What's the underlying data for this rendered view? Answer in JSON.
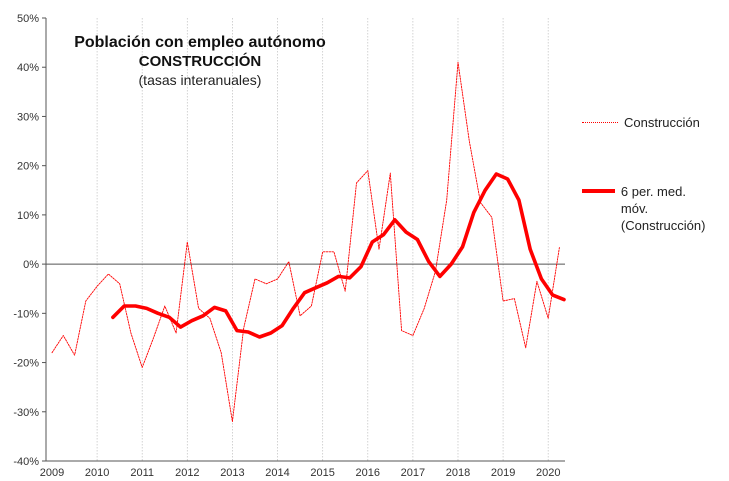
{
  "title": {
    "line1": "Población con empleo autónomo",
    "line2": "CONSTRUCCIÓN",
    "line3": "(tasas interanuales)"
  },
  "colors": {
    "series": "#ff0000",
    "grid": "#c8c8c8",
    "axis": "#555555"
  },
  "chart_data": {
    "type": "line",
    "x_label": "",
    "y_label": "",
    "xlim": [
      2009.0,
      2020.35
    ],
    "ylim": [
      -40,
      50
    ],
    "y_ticks": [
      -40,
      -30,
      -20,
      -10,
      0,
      10,
      20,
      30,
      40,
      50
    ],
    "y_tick_labels": [
      "-40%",
      "-30%",
      "-20%",
      "-10%",
      "0%",
      "10%",
      "20%",
      "30%",
      "40%",
      "50%"
    ],
    "x_ticks": [
      2009,
      2010,
      2011,
      2012,
      2013,
      2014,
      2015,
      2016,
      2017,
      2018,
      2019,
      2020
    ],
    "x_tick_labels": [
      "2009",
      "2010",
      "2011",
      "2012",
      "2013",
      "2014",
      "2015",
      "2016",
      "2017",
      "2018",
      "2019",
      "2020"
    ],
    "grid": "vertical",
    "legend_position": "right",
    "series": [
      {
        "name": "Construcción",
        "style": "thin-dotted",
        "points": [
          [
            2009.0,
            -18
          ],
          [
            2009.25,
            -14.5
          ],
          [
            2009.5,
            -18.5
          ],
          [
            2009.75,
            -7.5
          ],
          [
            2010.0,
            -4.5
          ],
          [
            2010.25,
            -2
          ],
          [
            2010.5,
            -4
          ],
          [
            2010.75,
            -14
          ],
          [
            2011.0,
            -21
          ],
          [
            2011.25,
            -15
          ],
          [
            2011.5,
            -8.5
          ],
          [
            2011.75,
            -14
          ],
          [
            2012.0,
            4.5
          ],
          [
            2012.25,
            -9
          ],
          [
            2012.5,
            -11
          ],
          [
            2012.75,
            -18
          ],
          [
            2013.0,
            -32
          ],
          [
            2013.25,
            -13
          ],
          [
            2013.5,
            -3
          ],
          [
            2013.75,
            -4
          ],
          [
            2014.0,
            -3
          ],
          [
            2014.25,
            0.5
          ],
          [
            2014.5,
            -10.5
          ],
          [
            2014.75,
            -8.5
          ],
          [
            2015.0,
            2.5
          ],
          [
            2015.25,
            2.5
          ],
          [
            2015.5,
            -5.5
          ],
          [
            2015.75,
            16.5
          ],
          [
            2016.0,
            19
          ],
          [
            2016.25,
            3
          ],
          [
            2016.5,
            18.5
          ],
          [
            2016.75,
            -13.5
          ],
          [
            2017.0,
            -14.5
          ],
          [
            2017.25,
            -9
          ],
          [
            2017.5,
            -1.5
          ],
          [
            2017.75,
            13
          ],
          [
            2018.0,
            41
          ],
          [
            2018.25,
            25
          ],
          [
            2018.5,
            12.5
          ],
          [
            2018.75,
            9.5
          ],
          [
            2019.0,
            -7.5
          ],
          [
            2019.25,
            -7
          ],
          [
            2019.5,
            -17
          ],
          [
            2019.75,
            -3.5
          ],
          [
            2020.0,
            -11
          ],
          [
            2020.25,
            3.5
          ]
        ]
      },
      {
        "name": "6 per. med. móv.\n(Construcción)",
        "style": "thick-solid",
        "points": [
          [
            2010.35,
            -10.8
          ],
          [
            2010.6,
            -8.5
          ],
          [
            2010.85,
            -8.5
          ],
          [
            2011.1,
            -9
          ],
          [
            2011.35,
            -10
          ],
          [
            2011.6,
            -10.8
          ],
          [
            2011.85,
            -12.8
          ],
          [
            2012.1,
            -11.5
          ],
          [
            2012.35,
            -10.5
          ],
          [
            2012.6,
            -8.8
          ],
          [
            2012.85,
            -9.5
          ],
          [
            2013.1,
            -13.5
          ],
          [
            2013.35,
            -13.8
          ],
          [
            2013.6,
            -14.8
          ],
          [
            2013.85,
            -14
          ],
          [
            2014.1,
            -12.5
          ],
          [
            2014.35,
            -9
          ],
          [
            2014.6,
            -5.8
          ],
          [
            2014.85,
            -4.8
          ],
          [
            2015.1,
            -3.8
          ],
          [
            2015.35,
            -2.5
          ],
          [
            2015.6,
            -2.8
          ],
          [
            2015.85,
            -0.5
          ],
          [
            2016.1,
            4.5
          ],
          [
            2016.35,
            6
          ],
          [
            2016.6,
            9
          ],
          [
            2016.85,
            6.5
          ],
          [
            2017.1,
            5
          ],
          [
            2017.35,
            0.5
          ],
          [
            2017.6,
            -2.5
          ],
          [
            2017.85,
            0
          ],
          [
            2018.1,
            3.5
          ],
          [
            2018.35,
            10.5
          ],
          [
            2018.6,
            15
          ],
          [
            2018.85,
            18.3
          ],
          [
            2019.1,
            17.3
          ],
          [
            2019.35,
            13
          ],
          [
            2019.6,
            3
          ],
          [
            2019.85,
            -3
          ],
          [
            2020.1,
            -6.3
          ],
          [
            2020.35,
            -7.2
          ]
        ]
      }
    ]
  }
}
